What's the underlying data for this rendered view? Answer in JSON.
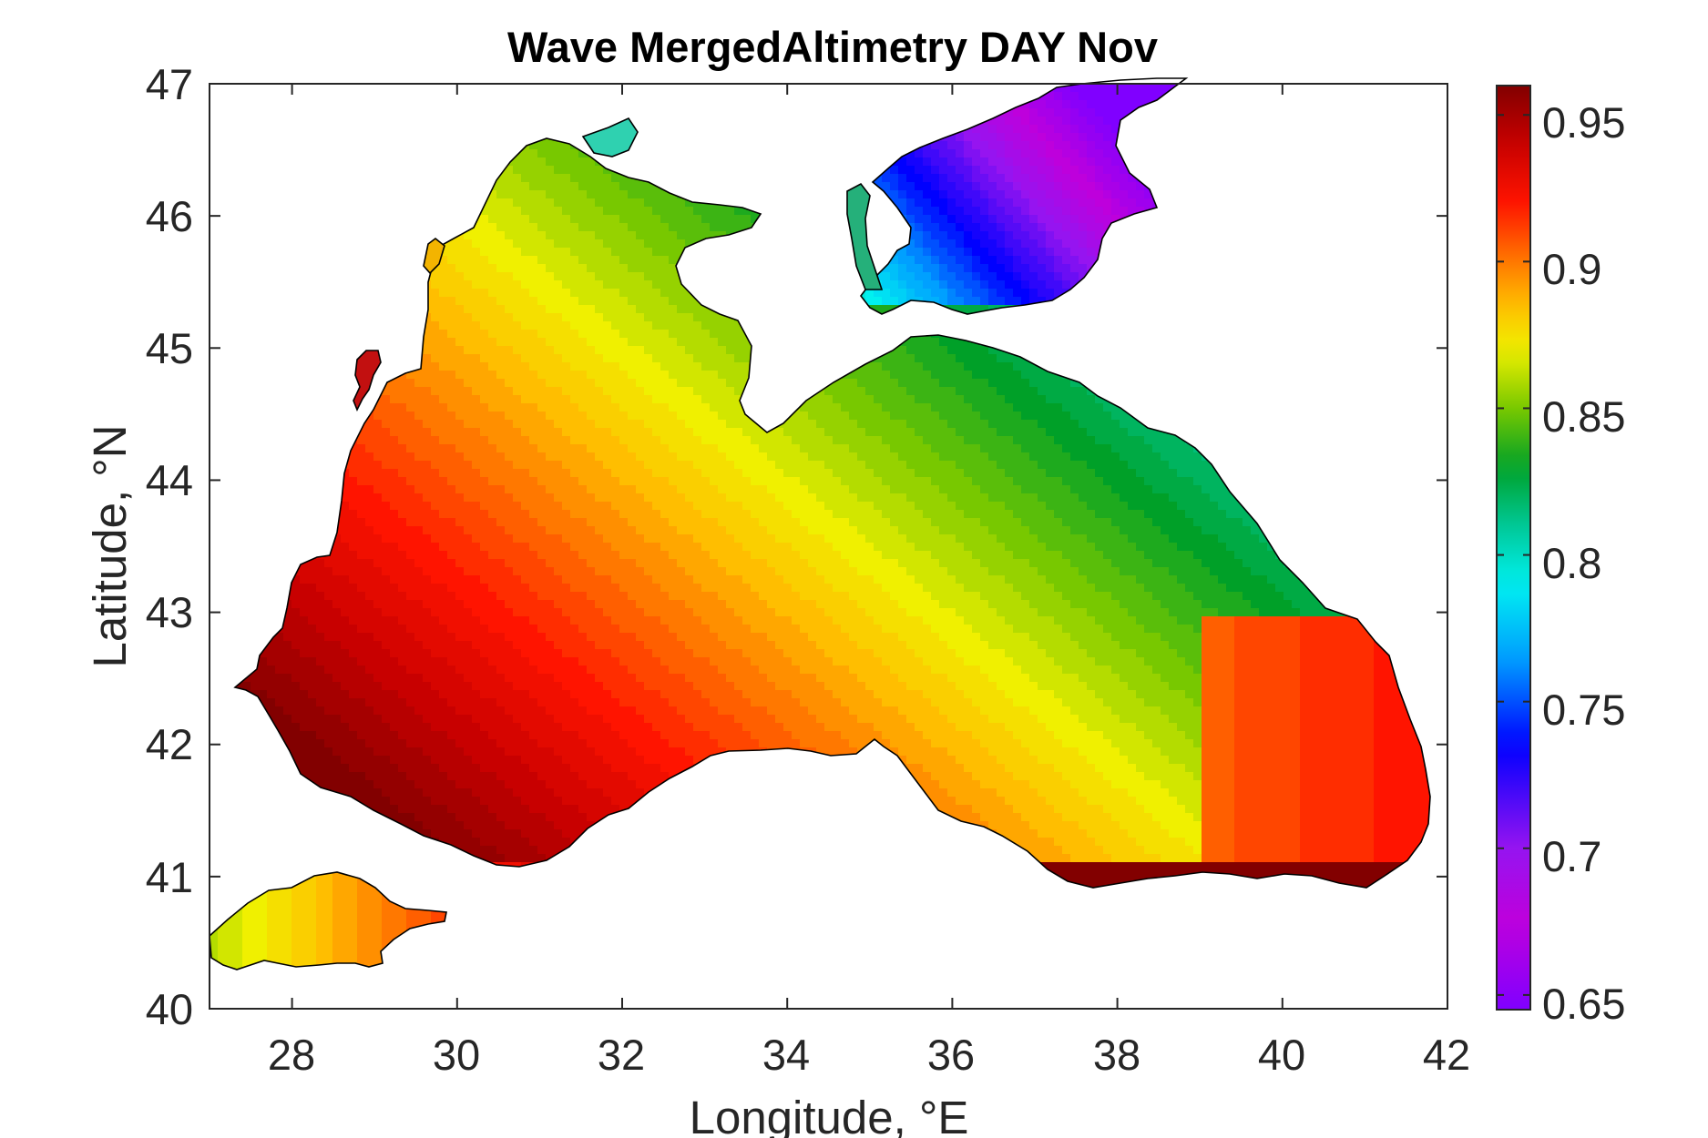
{
  "title": "Wave MergedAltimetry DAY Nov",
  "xlabel": "Longitude, °E",
  "ylabel": "Latitude, °N",
  "x_ticks": [
    "28",
    "30",
    "32",
    "34",
    "36",
    "38",
    "40",
    "42"
  ],
  "y_ticks": [
    "47",
    "46",
    "45",
    "44",
    "43",
    "42",
    "41",
    "40"
  ],
  "colorbar_ticks": [
    "0.95",
    "0.9",
    "0.85",
    "0.8",
    "0.75",
    "0.7",
    "0.65"
  ],
  "chart_data": {
    "type": "heatmap",
    "title": "Wave MergedAltimetry DAY Nov",
    "xlabel": "Longitude, °E",
    "ylabel": "Latitude, °N",
    "xlim": [
      27,
      42
    ],
    "ylim": [
      40,
      47
    ],
    "x_ticks": [
      28,
      30,
      32,
      34,
      36,
      38,
      40,
      42
    ],
    "y_ticks": [
      40,
      41,
      42,
      43,
      44,
      45,
      46,
      47
    ],
    "colorbar": {
      "range": [
        0.645,
        0.96
      ],
      "ticks": [
        0.65,
        0.7,
        0.75,
        0.8,
        0.85,
        0.9,
        0.95
      ],
      "colormap": "jet-like (violet → blue → cyan → green → yellow → orange → red → dark red)"
    },
    "field_summary": {
      "southwest_basin": 0.95,
      "central_basin": 0.92,
      "southeast_basin": 0.9,
      "northeast_coast_near_kerch": 0.83,
      "northwest_shelf_near_odessa": 0.82,
      "sea_of_azov": [
        0.68,
        0.8
      ],
      "sea_of_marmara": [
        0.86,
        0.9
      ]
    },
    "grid": false,
    "contours": true
  }
}
